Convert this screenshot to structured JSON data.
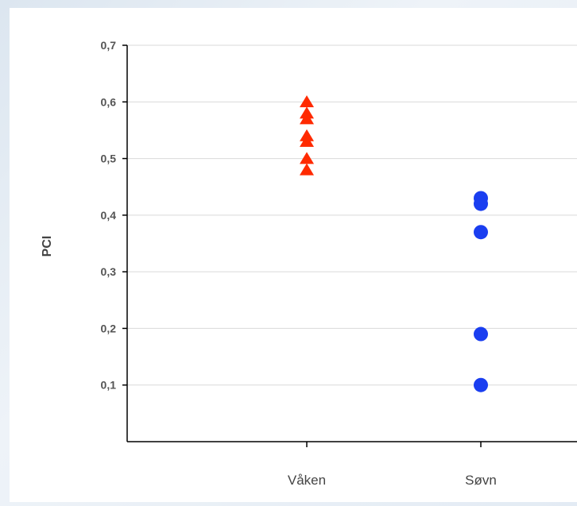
{
  "chart_data": {
    "type": "scatter",
    "title": "",
    "xlabel": "",
    "ylabel": "PCI",
    "categories": [
      "Våken",
      "Søvn"
    ],
    "ylim": [
      0,
      0.7
    ],
    "yticks": [
      "0,1",
      "0,2",
      "0,3",
      "0,4",
      "0,5",
      "0,6",
      "0,7"
    ],
    "grid": true,
    "legend": "none",
    "series": [
      {
        "category": "Våken",
        "marker": "triangle",
        "color": "#ff2a00",
        "values": [
          0.6,
          0.58,
          0.57,
          0.54,
          0.53,
          0.5,
          0.48
        ]
      },
      {
        "category": "Søvn",
        "marker": "circle",
        "color": "#1a3ef0",
        "values": [
          0.43,
          0.42,
          0.37,
          0.19,
          0.1
        ]
      }
    ]
  }
}
